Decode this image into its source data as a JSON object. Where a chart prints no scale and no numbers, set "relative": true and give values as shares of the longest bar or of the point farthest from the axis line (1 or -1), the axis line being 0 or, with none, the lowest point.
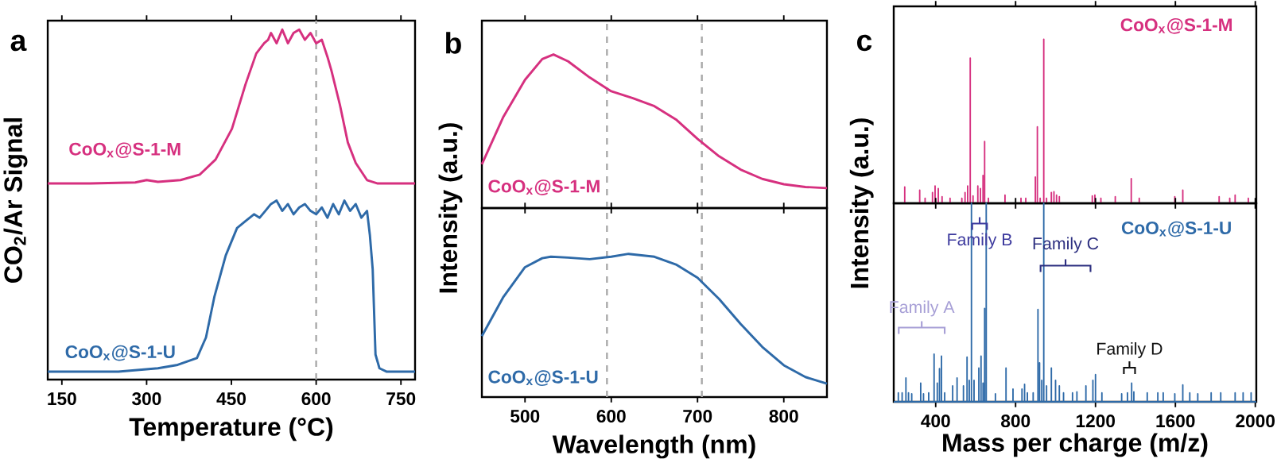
{
  "chart_data": [
    {
      "type": "line",
      "relative": true,
      "xlabel": "Temperature (°C)",
      "ylabel": "CO$_{2}$/Ar Signal",
      "xlim": [
        125,
        775
      ],
      "xticks": [
        150,
        300,
        450,
        600,
        750
      ],
      "tick_labels": "x",
      "annotations": [
        "a"
      ],
      "ref_lines": [
        {
          "axis": "x",
          "value": 600,
          "color": "#aaaaaa",
          "line_style": "dashed"
        }
      ],
      "series": [
        {
          "name": "CoO$_{x}$@S-1-M",
          "color": "#d6307f",
          "x": [
            125,
            200,
            280,
            300,
            320,
            360,
            394,
            422,
            451,
            475,
            494,
            508,
            515,
            520,
            530,
            540,
            550,
            560,
            570,
            580,
            590,
            600,
            610,
            620,
            627,
            642,
            656,
            670,
            690,
            709,
            775
          ],
          "values": [
            0.55,
            0.55,
            0.553,
            0.56,
            0.555,
            0.56,
            0.576,
            0.62,
            0.71,
            0.84,
            0.93,
            0.96,
            0.97,
            0.99,
            0.96,
            1.0,
            0.96,
            0.99,
            1.0,
            0.97,
            0.99,
            0.96,
            0.97,
            0.92,
            0.88,
            0.78,
            0.67,
            0.61,
            0.56,
            0.55,
            0.55
          ]
        },
        {
          "name": "CoO$_{x}$@S-1-U",
          "color": "#2e6aa8",
          "x": [
            125,
            250,
            320,
            355,
            389,
            405,
            420,
            440,
            460,
            475,
            490,
            500,
            510,
            520,
            530,
            540,
            550,
            560,
            570,
            580,
            590,
            600,
            610,
            620,
            630,
            640,
            650,
            660,
            670,
            680,
            690,
            695,
            700,
            705,
            712,
            725,
            775
          ],
          "values": [
            0,
            0,
            0.01,
            0.02,
            0.04,
            0.1,
            0.22,
            0.34,
            0.42,
            0.44,
            0.46,
            0.45,
            0.47,
            0.49,
            0.5,
            0.47,
            0.49,
            0.46,
            0.48,
            0.49,
            0.47,
            0.46,
            0.48,
            0.45,
            0.49,
            0.46,
            0.5,
            0.47,
            0.49,
            0.45,
            0.47,
            0.4,
            0.3,
            0.05,
            0.01,
            0,
            0
          ]
        }
      ]
    },
    {
      "type": "line",
      "relative": true,
      "ylabel": "Intensity (a.u.)",
      "xlim": [
        450,
        850
      ],
      "xticks": [
        500,
        600,
        700,
        800
      ],
      "tick_labels": false,
      "annotations": [
        "b"
      ],
      "ref_lines": [
        {
          "axis": "x",
          "value": 595,
          "color": "#aaaaaa",
          "line_style": "dashed"
        },
        {
          "axis": "x",
          "value": 705,
          "color": "#aaaaaa",
          "line_style": "dashed"
        }
      ],
      "series": [
        {
          "name": "CoO$_{x}$@S-1-M",
          "color": "#d6307f",
          "x": [
            450,
            475,
            500,
            520,
            533,
            550,
            575,
            600,
            625,
            650,
            675,
            700,
            725,
            750,
            775,
            800,
            825,
            850
          ],
          "values": [
            0.285,
            0.595,
            0.835,
            0.97,
            1.0,
            0.955,
            0.85,
            0.76,
            0.715,
            0.663,
            0.577,
            0.45,
            0.337,
            0.25,
            0.19,
            0.155,
            0.137,
            0.13
          ]
        }
      ]
    },
    {
      "type": "line",
      "relative": true,
      "xlabel": "Wavelength (nm)",
      "xlim": [
        450,
        850
      ],
      "xticks": [
        500,
        600,
        700,
        800
      ],
      "tick_labels": "x",
      "ref_lines": [
        {
          "axis": "x",
          "value": 595,
          "color": "#aaaaaa",
          "line_style": "dashed"
        },
        {
          "axis": "x",
          "value": 705,
          "color": "#aaaaaa",
          "line_style": "dashed"
        }
      ],
      "series": [
        {
          "name": "CoO$_{x}$@S-1-U",
          "color": "#2e6aa8",
          "x": [
            450,
            475,
            500,
            520,
            530,
            550,
            575,
            600,
            620,
            650,
            675,
            700,
            725,
            750,
            775,
            800,
            825,
            850
          ],
          "values": [
            0.426,
            0.7,
            0.907,
            0.97,
            0.98,
            0.974,
            0.963,
            0.98,
            1.0,
            0.98,
            0.926,
            0.833,
            0.685,
            0.51,
            0.35,
            0.222,
            0.14,
            0.093
          ]
        }
      ]
    },
    {
      "type": "line",
      "relative": true,
      "ylabel": "Intensity (a.u.)",
      "xlim": [
        190,
        2005
      ],
      "xticks": [
        400,
        800,
        1200,
        1600,
        2000
      ],
      "tick_labels": false,
      "annotations": [
        "c"
      ],
      "series": [
        {
          "name": "CoO$_{x}$@S-1-M",
          "color": "#d6307f",
          "x": [
            245,
            245,
            245,
            320,
            320,
            320,
            347,
            347,
            347,
            384,
            384,
            384,
            397,
            397,
            397,
            413,
            413,
            413,
            432,
            432,
            432,
            472,
            472,
            472,
            531,
            531,
            531,
            547,
            547,
            547,
            560,
            560,
            560,
            573,
            573,
            573,
            587,
            587,
            587,
            611,
            611,
            611,
            624,
            624,
            624,
            637,
            637,
            637,
            645,
            645,
            645,
            664,
            664,
            664,
            747,
            747,
            747,
            827,
            827,
            827,
            851,
            851,
            851,
            899,
            899,
            899,
            909,
            909,
            909,
            923,
            923,
            923,
            941,
            941,
            941,
            955,
            955,
            955,
            979,
            979,
            979,
            992,
            992,
            992,
            1005,
            1005,
            1005,
            1019,
            1019,
            1019,
            1184,
            1184,
            1184,
            1197,
            1197,
            1197,
            1227,
            1227,
            1227,
            1299,
            1299,
            1299,
            1379,
            1379,
            1379,
            1419,
            1419,
            1419,
            1597,
            1597,
            1597,
            1637,
            1637,
            1637,
            1819,
            1819,
            1819,
            1872,
            1872,
            1872,
            1899,
            1899,
            1899,
            1965,
            1965,
            1965,
            2005
          ],
          "values": [
            0,
            0.1,
            0,
            0,
            0.08,
            0,
            0,
            0.03,
            0,
            0,
            0.065,
            0,
            0,
            0.105,
            0,
            0,
            0.09,
            0,
            0,
            0.04,
            0,
            0,
            0.03,
            0,
            0,
            0.03,
            0,
            0,
            0.065,
            0,
            0,
            0.105,
            0,
            0,
            0.885,
            0,
            0,
            0.045,
            0,
            0,
            0.105,
            0,
            0,
            0.09,
            0,
            0,
            0.17,
            0,
            0,
            0.377,
            0,
            0,
            0.03,
            0,
            0,
            0.05,
            0,
            0,
            0.03,
            0,
            0,
            0.03,
            0,
            0,
            0.16,
            0,
            0,
            0.466,
            0,
            0,
            0.03,
            0,
            0,
            1.0,
            0,
            0,
            0.03,
            0,
            0,
            0.065,
            0,
            0,
            0.07,
            0,
            0,
            0.05,
            0,
            0,
            0.04,
            0,
            0,
            0.045,
            0,
            0,
            0.05,
            0,
            0,
            0.03,
            0,
            0,
            0.04,
            0,
            0,
            0.15,
            0,
            0,
            0.03,
            0,
            0,
            0.04,
            0,
            0,
            0.08,
            0,
            0,
            0.04,
            0,
            0,
            0.03,
            0,
            0,
            0.05,
            0,
            0,
            0.03,
            0,
            0
          ]
        }
      ]
    },
    {
      "type": "line",
      "relative": true,
      "xlabel": "Mass per charge (m/z)",
      "xlim": [
        190,
        2005
      ],
      "xticks": [
        400,
        800,
        1200,
        1600,
        2000
      ],
      "tick_labels": "x",
      "annotations": [
        "Family A",
        "Family B",
        "Family C",
        "Family D"
      ],
      "series": [
        {
          "name": "CoO$_{x}$@S-1-U",
          "color": "#2e6aa8",
          "x": [
            190,
            213,
            213,
            213,
            232,
            232,
            232,
            251,
            251,
            251,
            264,
            264,
            264,
            280,
            280,
            280,
            325,
            325,
            325,
            339,
            339,
            339,
            365,
            365,
            365,
            392,
            392,
            392,
            408,
            408,
            408,
            419,
            419,
            419,
            429,
            429,
            429,
            445,
            445,
            445,
            485,
            485,
            485,
            507,
            507,
            507,
            539,
            539,
            539,
            557,
            557,
            557,
            568,
            568,
            568,
            579,
            579,
            579,
            592,
            592,
            592,
            616,
            616,
            616,
            627,
            627,
            627,
            637,
            637,
            637,
            645,
            645,
            645,
            653,
            653,
            653,
            699,
            699,
            699,
            752,
            752,
            752,
            787,
            787,
            787,
            832,
            832,
            832,
            845,
            845,
            845,
            859,
            859,
            859,
            888,
            888,
            888,
            912,
            912,
            912,
            920,
            920,
            920,
            931,
            931,
            931,
            941,
            941,
            941,
            955,
            955,
            955,
            979,
            979,
            979,
            1000,
            1000,
            1000,
            1019,
            1019,
            1019,
            1040,
            1040,
            1040,
            1085,
            1085,
            1085,
            1107,
            1107,
            1107,
            1152,
            1152,
            1152,
            1187,
            1187,
            1187,
            1200,
            1200,
            1200,
            1232,
            1232,
            1232,
            1331,
            1331,
            1331,
            1360,
            1360,
            1360,
            1381,
            1381,
            1381,
            1392,
            1392,
            1392,
            1459,
            1459,
            1459,
            1512,
            1512,
            1512,
            1539,
            1539,
            1539,
            1597,
            1597,
            1597,
            1637,
            1637,
            1637,
            1672,
            1672,
            1672,
            1712,
            1712,
            1712,
            1779,
            1779,
            1779,
            1827,
            1827,
            1827,
            1899,
            1899,
            1899,
            1939,
            1939,
            1939,
            1979,
            1979,
            1979,
            2005
          ],
          "values": [
            0,
            0,
            0.045,
            0,
            0,
            0.045,
            0,
            0,
            0.12,
            0,
            0,
            0.045,
            0,
            0,
            0.04,
            0,
            0,
            0.094,
            0,
            0,
            0.04,
            0,
            0,
            0.045,
            0,
            0,
            0.24,
            0,
            0,
            0.094,
            0,
            0,
            0.167,
            0,
            0,
            0.23,
            0,
            0,
            0.045,
            0,
            0,
            0.08,
            0,
            0,
            0.12,
            0,
            0,
            0.08,
            0,
            0,
            0.225,
            0,
            0,
            0.108,
            0,
            0,
            1.0,
            0,
            0,
            0.108,
            0,
            0,
            0.17,
            0,
            0,
            0.23,
            0,
            0,
            0.094,
            0,
            0,
            0.47,
            0,
            0,
            1.0,
            0,
            0,
            0.04,
            0,
            0,
            0.17,
            0,
            0,
            0.064,
            0,
            0,
            0.064,
            0,
            0,
            0.088,
            0,
            0,
            0.045,
            0,
            0,
            0.045,
            0,
            0,
            0.465,
            0,
            0,
            0.196,
            0,
            0,
            0.108,
            0,
            0,
            1.0,
            0,
            0,
            0.08,
            0,
            0,
            0.17,
            0,
            0,
            0.108,
            0,
            0,
            0.08,
            0,
            0,
            0.045,
            0,
            0,
            0.045,
            0,
            0,
            0.05,
            0,
            0,
            0.08,
            0,
            0,
            0.108,
            0,
            0,
            0.137,
            0,
            0,
            0.045,
            0,
            0,
            0.04,
            0,
            0,
            0.045,
            0,
            0,
            0.094,
            0,
            0,
            0.05,
            0,
            0,
            0.045,
            0,
            0,
            0.045,
            0,
            0,
            0.045,
            0,
            0,
            0.04,
            0,
            0,
            0.085,
            0,
            0,
            0.045,
            0,
            0,
            0.04,
            0,
            0,
            0.045,
            0,
            0,
            0.045,
            0,
            0,
            0.045,
            0,
            0,
            0.045,
            0,
            0,
            0.045,
            0,
            0
          ]
        }
      ]
    }
  ]
}
